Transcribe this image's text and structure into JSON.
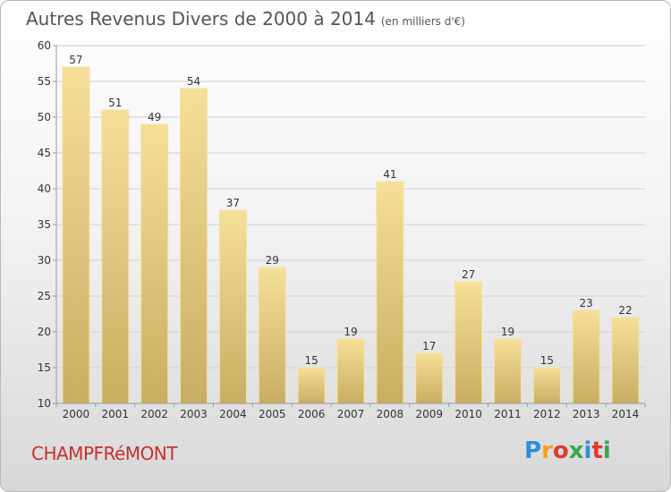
{
  "chart_title": "Autres Revenus Divers de 2000 à 2014",
  "chart_unit": "(en milliers d'€)",
  "commune": "CHAMPFRéMONT",
  "logo": {
    "letters": [
      "P",
      "r",
      "o",
      "x",
      "i",
      "t",
      "i"
    ],
    "colors": [
      "#2f8fd8",
      "#f2a11c",
      "#e23a2c",
      "#3aa84b",
      "#2f8fd8",
      "#e23a2c",
      "#3aa84b"
    ]
  },
  "chart_data": {
    "type": "bar",
    "title": "Autres Revenus Divers de 2000 à 2014",
    "unit": "(en milliers d'€)",
    "categories": [
      "2000",
      "2001",
      "2002",
      "2003",
      "2004",
      "2005",
      "2006",
      "2007",
      "2008",
      "2009",
      "2010",
      "2011",
      "2012",
      "2013",
      "2014"
    ],
    "values": [
      57,
      51,
      49,
      54,
      37,
      29,
      15,
      19,
      41,
      17,
      27,
      19,
      15,
      23,
      22
    ],
    "ylim": [
      10,
      60
    ],
    "yticks": [
      10,
      15,
      20,
      25,
      30,
      35,
      40,
      45,
      50,
      55,
      60
    ],
    "grid": true,
    "bar_color": "#e9cf86"
  }
}
